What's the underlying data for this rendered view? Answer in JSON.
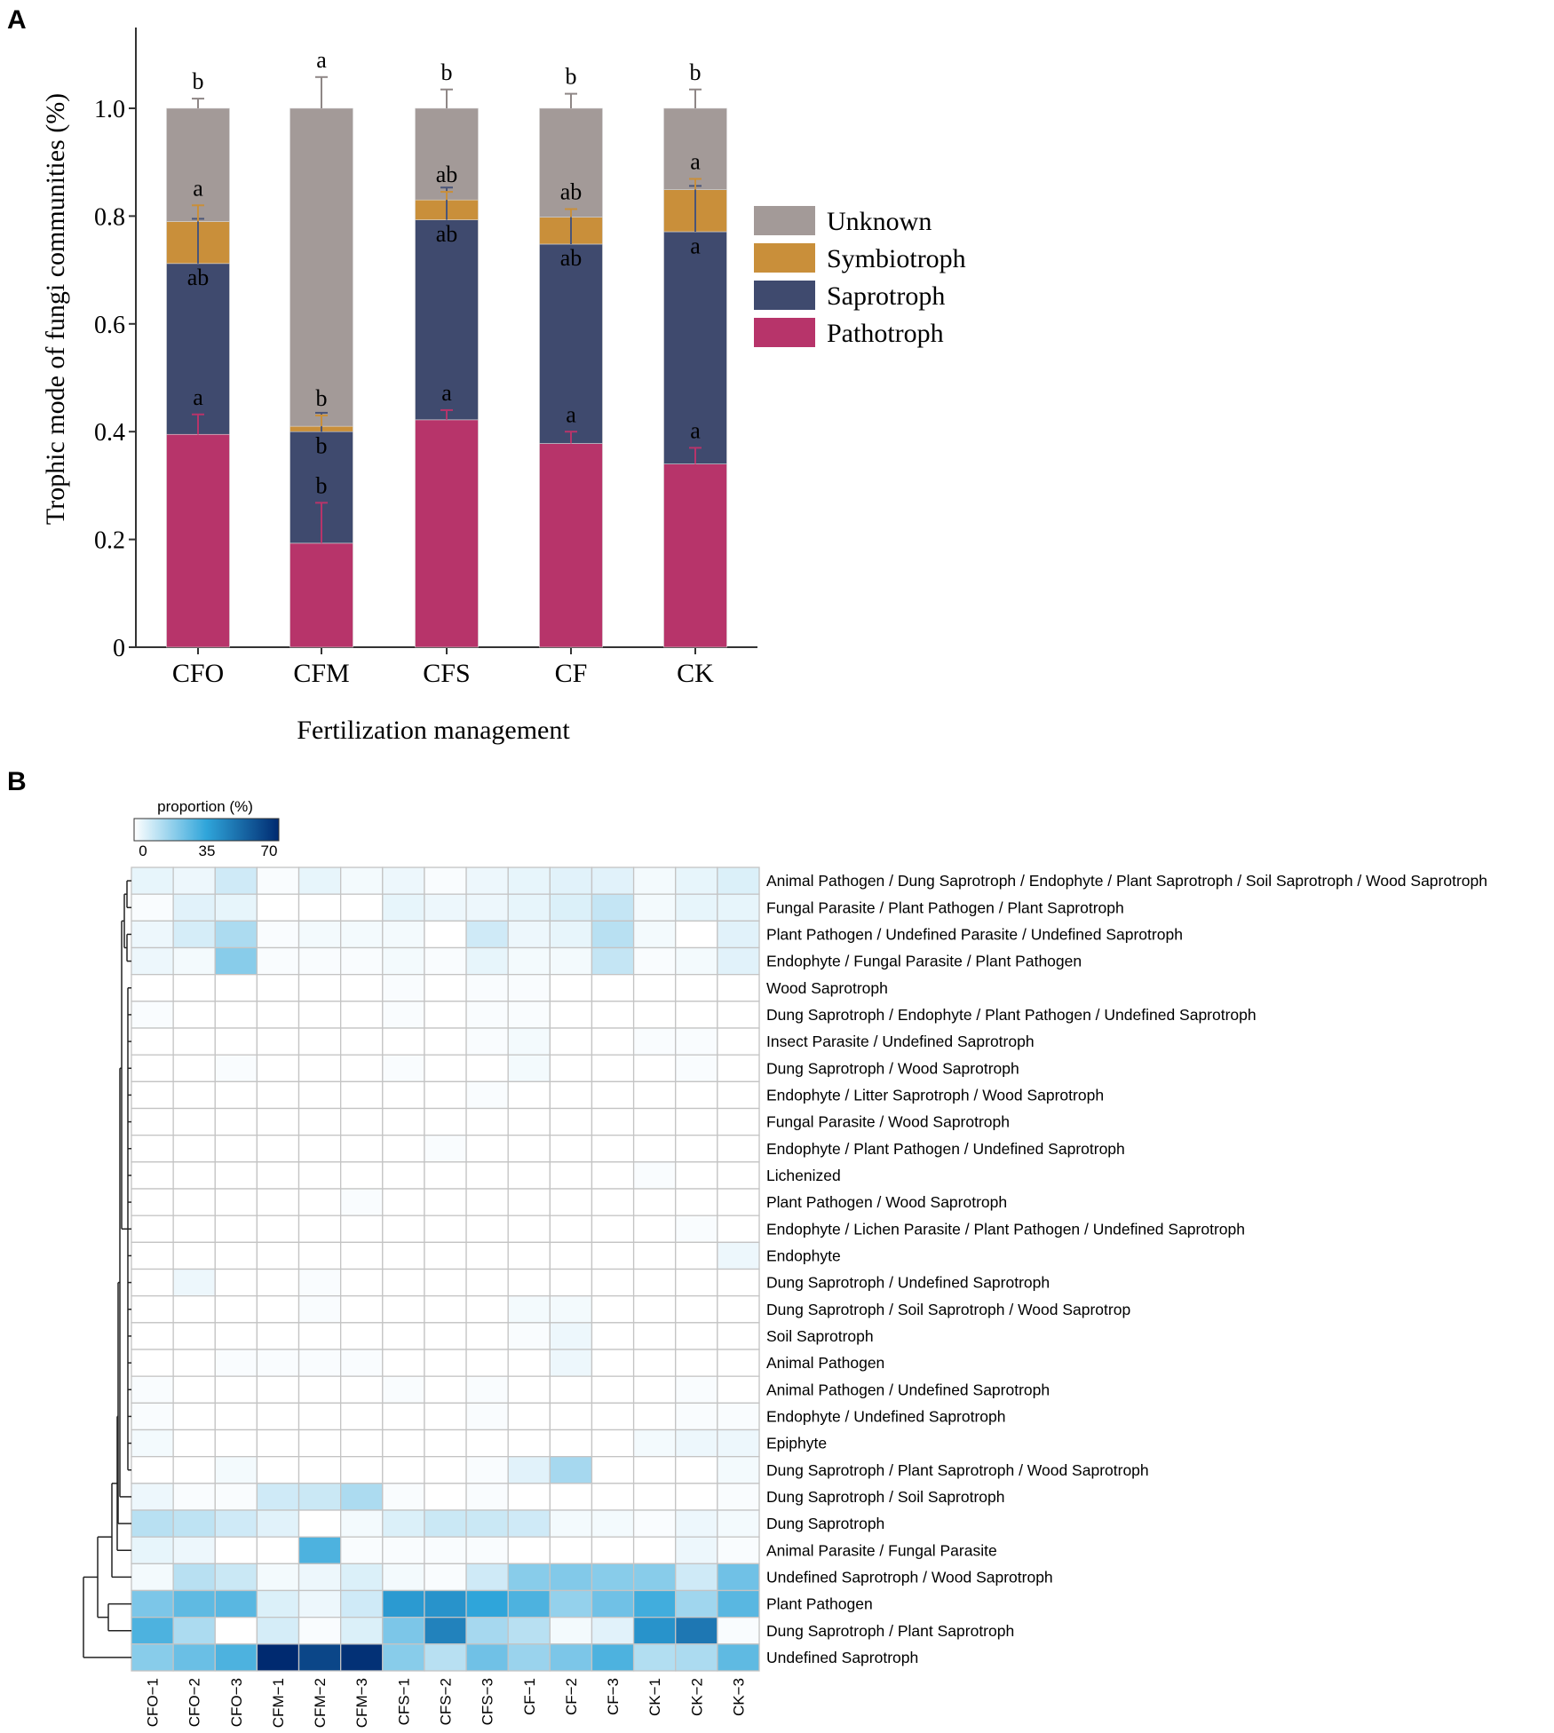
{
  "chart_data": [
    {
      "panel_label": "A",
      "type": "bar",
      "stacked": true,
      "title": "",
      "xlabel": "Fertilization management",
      "ylabel": "Trophic mode of fungi communities (%)",
      "ylim": [
        0,
        1.15
      ],
      "yticks": [
        0,
        0.2,
        0.4,
        0.6,
        0.8,
        1.0
      ],
      "ytick_labels": [
        "0",
        "0.2",
        "0.4",
        "0.6",
        "0.8",
        "1.0"
      ],
      "categories": [
        "CFO",
        "CFM",
        "CFS",
        "CF",
        "CK"
      ],
      "legend_position": "right",
      "series": [
        {
          "name": "Pathotroph",
          "color": "#b7346a",
          "values": [
            0.395,
            0.193,
            0.422,
            0.378,
            0.34
          ],
          "errors": [
            0.037,
            0.075,
            0.018,
            0.022,
            0.03
          ],
          "letters": [
            "a",
            "b",
            "a",
            "a",
            "a"
          ]
        },
        {
          "name": "Saprotroph",
          "color": "#3f4a6e",
          "values": [
            0.317,
            0.207,
            0.371,
            0.37,
            0.431
          ],
          "errors": [
            0.083,
            0.035,
            0.06,
            0.065,
            0.085
          ],
          "letters": [
            "ab",
            "b",
            "ab",
            "ab",
            "a"
          ]
        },
        {
          "name": "Symbiotroph",
          "color": "#c98f3a",
          "values": [
            0.078,
            0.01,
            0.037,
            0.05,
            0.078
          ],
          "errors": [
            0.03,
            0.02,
            0.015,
            0.015,
            0.02
          ],
          "letters": [
            "a",
            "b",
            "ab",
            "ab",
            "a"
          ]
        },
        {
          "name": "Unknown",
          "color": "#a39a98",
          "values": [
            0.21,
            0.59,
            0.17,
            0.202,
            0.151
          ],
          "errors": [
            0.018,
            0.058,
            0.035,
            0.027,
            0.035
          ],
          "letters": [
            "b",
            "a",
            "b",
            "b",
            "b"
          ]
        }
      ],
      "legend_order": [
        "Unknown",
        "Symbiotroph",
        "Saprotroph",
        "Pathotroph"
      ]
    },
    {
      "panel_label": "B",
      "type": "heatmap",
      "colorbar_title": "proportion (%)",
      "colorbar_ticks": [
        "0",
        "35",
        "70"
      ],
      "color_range": [
        0,
        70
      ],
      "colors": [
        "#ffffff",
        "#2fa5da",
        "#002a70"
      ],
      "columns": [
        "CFO−1",
        "CFO−2",
        "CFO−3",
        "CFM−1",
        "CFM−2",
        "CFM−3",
        "CFS−1",
        "CFS−2",
        "CFS−3",
        "CF−1",
        "CF−2",
        "CF−3",
        "CK−1",
        "CK−2",
        "CK−3"
      ],
      "rows": [
        {
          "label": "Animal Pathogen / Dung Saprotroph / Endophyte / Plant Saprotroph / Soil Saprotroph / Wood Saprotroph",
          "values": [
            4,
            3,
            8,
            1,
            4,
            2,
            3,
            1,
            3,
            4,
            5,
            5,
            2,
            4,
            6
          ]
        },
        {
          "label": "Fungal Parasite / Plant Pathogen / Plant Saprotroph",
          "values": [
            1,
            5,
            4,
            0,
            0,
            0,
            4,
            3,
            3,
            4,
            6,
            10,
            2,
            4,
            4
          ]
        },
        {
          "label": "Plant Pathogen / Undefined Parasite / Undefined Saprotroph",
          "values": [
            3,
            7,
            14,
            1,
            2,
            2,
            2,
            0,
            8,
            3,
            4,
            12,
            2,
            0,
            5
          ]
        },
        {
          "label": "Endophyte / Fungal Parasite / Plant Pathogen",
          "values": [
            3,
            2,
            20,
            1,
            1,
            1,
            2,
            1,
            4,
            2,
            2,
            10,
            1,
            2,
            5
          ]
        },
        {
          "label": "Wood Saprotroph",
          "values": [
            0,
            0,
            0,
            0,
            0,
            0,
            1,
            0,
            1,
            1,
            0,
            0,
            0,
            0,
            0
          ]
        },
        {
          "label": "Dung Saprotroph / Endophyte / Plant Pathogen / Undefined Saprotroph",
          "values": [
            1,
            0,
            0,
            0,
            0,
            0,
            1,
            0,
            1,
            1,
            0,
            0,
            0,
            0,
            0
          ]
        },
        {
          "label": "Insect Parasite / Undefined Saprotroph",
          "values": [
            0,
            0,
            0,
            0,
            0,
            0,
            0,
            0,
            1,
            2,
            0,
            0,
            1,
            1,
            0
          ]
        },
        {
          "label": "Dung Saprotroph / Wood Saprotroph",
          "values": [
            0,
            0,
            1,
            0,
            0,
            0,
            1,
            0,
            0,
            2,
            0,
            0,
            0,
            1,
            0
          ]
        },
        {
          "label": "Endophyte / Litter Saprotroph / Wood Saprotroph",
          "values": [
            0,
            0,
            0,
            0,
            0,
            0,
            0,
            0,
            1,
            0,
            0,
            0,
            0,
            0,
            0
          ]
        },
        {
          "label": "Fungal Parasite / Wood Saprotroph",
          "values": [
            0,
            0,
            0,
            0,
            0,
            0,
            0,
            0,
            0,
            0,
            0,
            0,
            0,
            0,
            0
          ]
        },
        {
          "label": "Endophyte / Plant Pathogen / Undefined Saprotroph",
          "values": [
            0,
            0,
            0,
            0,
            0,
            0,
            0,
            1,
            0,
            0,
            0,
            0,
            0,
            0,
            0
          ]
        },
        {
          "label": "Lichenized",
          "values": [
            0,
            0,
            0,
            0,
            0,
            0,
            0,
            0,
            0,
            0,
            0,
            0,
            1,
            0,
            0
          ]
        },
        {
          "label": "Plant Pathogen / Wood Saprotroph",
          "values": [
            0,
            0,
            0,
            0,
            0,
            1,
            0,
            0,
            0,
            0,
            0,
            0,
            0,
            0,
            0
          ]
        },
        {
          "label": "Endophyte / Lichen Parasite / Plant Pathogen / Undefined Saprotroph",
          "values": [
            0,
            0,
            0,
            0,
            0,
            0,
            0,
            0,
            0,
            0,
            0,
            0,
            0,
            1,
            0
          ]
        },
        {
          "label": "Endophyte",
          "values": [
            0,
            0,
            0,
            0,
            0,
            0,
            0,
            0,
            0,
            0,
            0,
            0,
            0,
            0,
            3
          ]
        },
        {
          "label": "Dung Saprotroph / Undefined Saprotroph",
          "values": [
            0,
            3,
            0,
            0,
            1,
            0,
            0,
            0,
            0,
            0,
            0,
            0,
            0,
            0,
            0
          ]
        },
        {
          "label": "Dung Saprotroph / Soil Saprotroph / Wood Saprotrop",
          "values": [
            0,
            0,
            0,
            0,
            1,
            0,
            0,
            0,
            0,
            2,
            2,
            0,
            0,
            0,
            0
          ]
        },
        {
          "label": "Soil Saprotroph",
          "values": [
            0,
            0,
            0,
            0,
            0,
            0,
            0,
            0,
            0,
            1,
            3,
            0,
            0,
            0,
            0
          ]
        },
        {
          "label": "Animal Pathogen",
          "values": [
            0,
            0,
            1,
            1,
            1,
            1,
            0,
            0,
            0,
            0,
            3,
            0,
            0,
            0,
            0
          ]
        },
        {
          "label": "Animal Pathogen / Undefined Saprotroph",
          "values": [
            1,
            0,
            0,
            0,
            0,
            0,
            1,
            0,
            1,
            0,
            0,
            0,
            0,
            1,
            0
          ]
        },
        {
          "label": "Endophyte / Undefined Saprotroph",
          "values": [
            1,
            0,
            0,
            0,
            0,
            0,
            0,
            0,
            1,
            0,
            0,
            0,
            0,
            1,
            1
          ]
        },
        {
          "label": "Epiphyte",
          "values": [
            2,
            0,
            0,
            0,
            0,
            0,
            0,
            0,
            0,
            0,
            0,
            0,
            2,
            3,
            3
          ]
        },
        {
          "label": "Dung Saprotroph / Plant Saprotroph / Wood Saprotroph",
          "values": [
            0,
            0,
            2,
            0,
            0,
            0,
            0,
            0,
            1,
            5,
            15,
            0,
            0,
            0,
            2
          ]
        },
        {
          "label": "Dung Saprotroph / Soil Saprotroph",
          "values": [
            3,
            1,
            1,
            8,
            9,
            14,
            1,
            0,
            1,
            0,
            0,
            0,
            0,
            0,
            1
          ]
        },
        {
          "label": "Dung Saprotroph",
          "values": [
            12,
            11,
            8,
            5,
            0,
            2,
            6,
            9,
            9,
            8,
            2,
            2,
            1,
            3,
            2
          ]
        },
        {
          "label": "Animal Parasite / Fungal Parasite",
          "values": [
            4,
            3,
            0,
            0,
            30,
            1,
            1,
            1,
            1,
            0,
            0,
            0,
            0,
            3,
            1
          ]
        },
        {
          "label": "Undefined Saprotroph / Wood Saprotroph",
          "values": [
            2,
            12,
            9,
            2,
            3,
            6,
            2,
            1,
            8,
            20,
            21,
            20,
            20,
            8,
            24
          ]
        },
        {
          "label": "Plant Pathogen",
          "values": [
            22,
            27,
            28,
            6,
            3,
            8,
            38,
            40,
            35,
            30,
            18,
            24,
            32,
            16,
            28
          ]
        },
        {
          "label": "Dung Saprotroph / Plant Saprotroph",
          "values": [
            30,
            14,
            0,
            7,
            1,
            6,
            22,
            45,
            15,
            12,
            2,
            5,
            40,
            48,
            1
          ]
        },
        {
          "label": "Undefined Saprotroph",
          "values": [
            20,
            25,
            30,
            72,
            62,
            68,
            20,
            12,
            24,
            17,
            22,
            30,
            13,
            14,
            27
          ]
        }
      ]
    }
  ]
}
